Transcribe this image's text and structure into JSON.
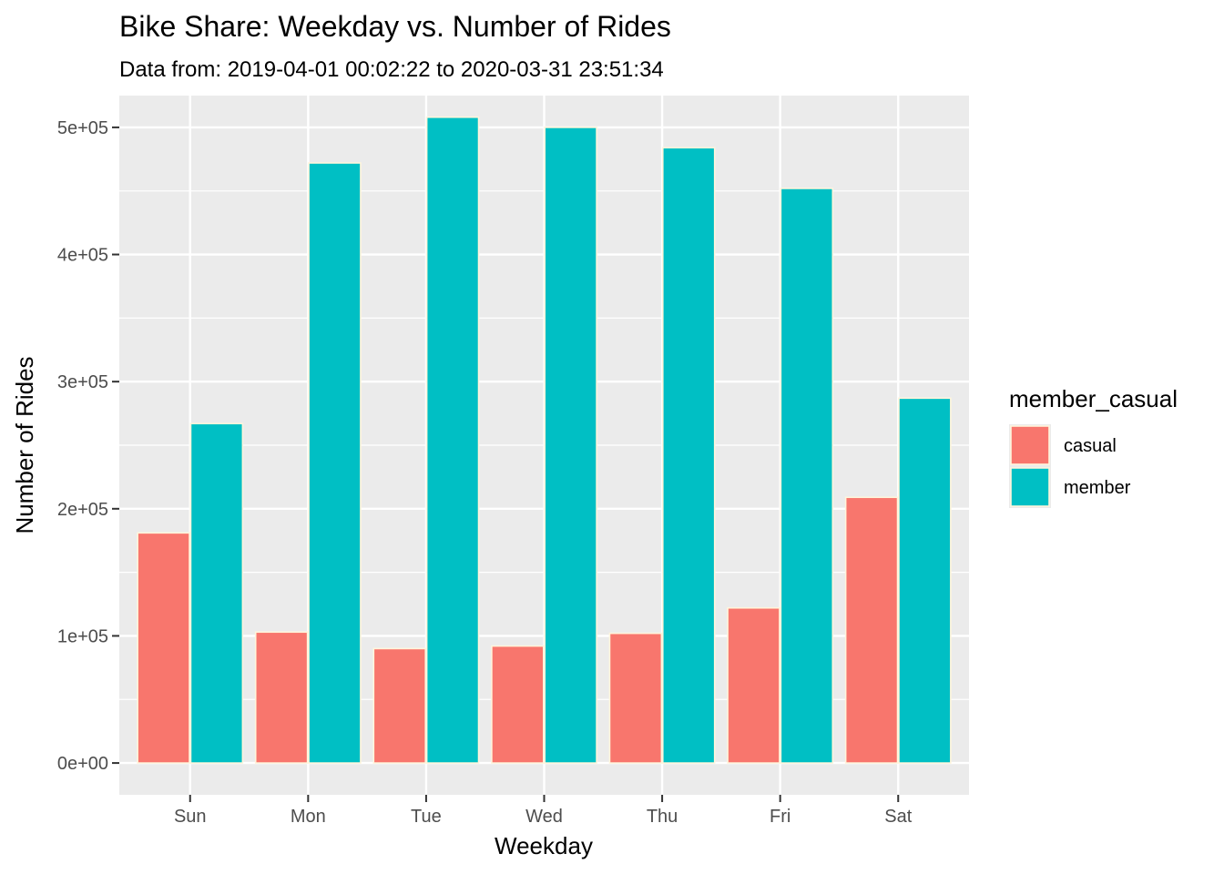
{
  "chart_data": {
    "type": "bar",
    "title": "Bike Share: Weekday vs. Number of Rides",
    "subtitle": "Data from: 2019-04-01 00:02:22 to 2020-03-31 23:51:34",
    "xlabel": "Weekday",
    "ylabel": "Number of Rides",
    "categories": [
      "Sun",
      "Mon",
      "Tue",
      "Wed",
      "Thu",
      "Fri",
      "Sat"
    ],
    "series": [
      {
        "name": "casual",
        "color": "#F8766D",
        "values": [
          181000,
          103000,
          90000,
          92000,
          102000,
          122000,
          209000
        ]
      },
      {
        "name": "member",
        "color": "#00BFC4",
        "values": [
          267000,
          472000,
          508000,
          500000,
          484000,
          452000,
          287000
        ]
      }
    ],
    "ylim": [
      -25000,
      525000
    ],
    "yticks": [
      0,
      100000,
      200000,
      300000,
      400000,
      500000
    ],
    "ytick_labels": [
      "0e+00",
      "1e+05",
      "2e+05",
      "3e+05",
      "4e+05",
      "5e+05"
    ],
    "legend": {
      "title": "member_casual",
      "position": "right"
    },
    "grid": true,
    "colors": {
      "panel": "#EBEBEB",
      "grid": "#FFFFFF",
      "bar_outline": "#FFF5DC"
    }
  }
}
